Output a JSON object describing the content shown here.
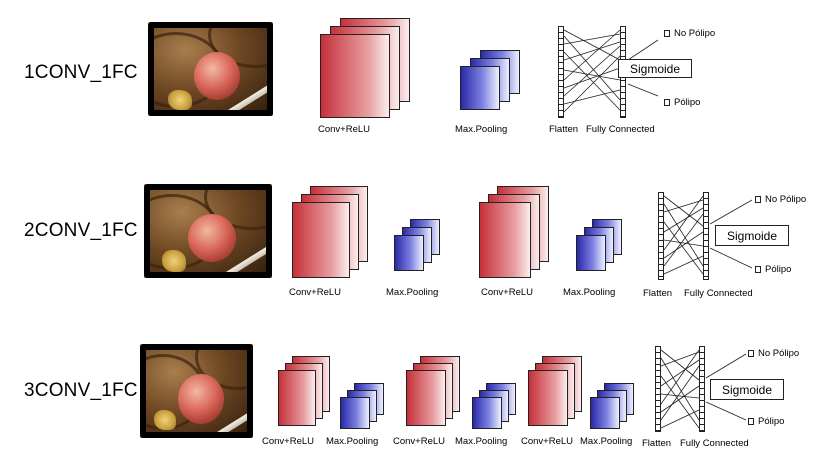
{
  "models": [
    {
      "label": "1CONV_1FC",
      "layers": [
        "Conv+ReLU",
        "Max.Pooling"
      ],
      "flatten_label": "Flatten",
      "fc_label": "Fully Connected",
      "sigmoid_label": "Sigmoide",
      "outputs": [
        "No Pólipo",
        "Pólipo"
      ]
    },
    {
      "label": "2CONV_1FC",
      "layers": [
        "Conv+ReLU",
        "Max.Pooling",
        "Conv+ReLU",
        "Max.Pooling"
      ],
      "flatten_label": "Flatten",
      "fc_label": "Fully Connected",
      "sigmoid_label": "Sigmoide",
      "outputs": [
        "No Pólipo",
        "Pólipo"
      ]
    },
    {
      "label": "3CONV_1FC",
      "layers": [
        "Conv+ReLU",
        "Max.Pooling",
        "Conv+ReLU",
        "Max.Pooling",
        "Conv+ReLU",
        "Max.Pooling"
      ],
      "flatten_label": "Flatten",
      "fc_label": "Fully Connected",
      "sigmoid_label": "Sigmoide",
      "outputs": [
        "No Pólipo",
        "Pólipo"
      ]
    }
  ],
  "colors": {
    "conv": "#c6303a",
    "pool": "#2a2aa8",
    "line": "#222222"
  }
}
